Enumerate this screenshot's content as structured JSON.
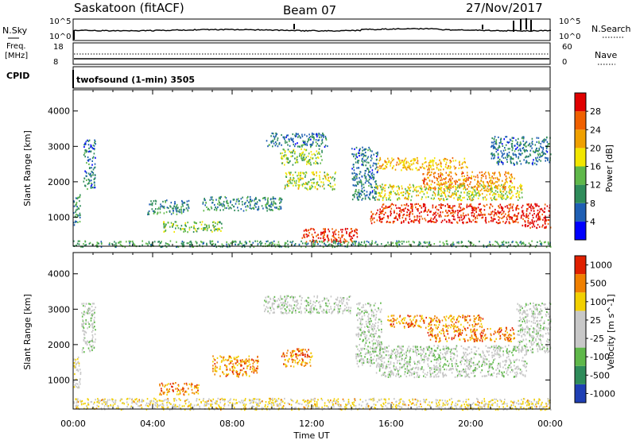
{
  "header": {
    "station": "Saskatoon (fitACF)",
    "beam": "Beam 07",
    "date": "27/Nov/2017"
  },
  "noise_panel": {
    "left_label": "N.Sky",
    "right_label": "N.Search",
    "left_ticks": [
      "10^5",
      "10^0"
    ],
    "right_ticks": [
      "10^5",
      "10^0"
    ]
  },
  "freq_panel": {
    "left_label_1": "Freq.",
    "left_label_2": "[MHz]",
    "right_label": "Nave",
    "left_ticks": [
      "18",
      "8"
    ],
    "right_ticks": [
      "60",
      "0"
    ],
    "cpid_label": "CPID"
  },
  "cpid": {
    "text": "twofsound (1-min) 3505"
  },
  "chart_data": [
    {
      "type": "heatmap",
      "quantity": "Power",
      "ylabel": "Slant Range [km]",
      "yticks": [
        "1000",
        "2000",
        "3000",
        "4000"
      ],
      "ylim": [
        180,
        4600
      ],
      "xlim": [
        0,
        24
      ],
      "colorbar": {
        "label": "Power [dB]",
        "ticks": [
          "4",
          "8",
          "12",
          "16",
          "20",
          "24",
          "28"
        ],
        "colors": [
          "#0000ff",
          "#1f5fb4",
          "#2f8c5a",
          "#5fb84a",
          "#f2e600",
          "#f0a000",
          "#f06000",
          "#e00000"
        ]
      },
      "regions": [
        {
          "t0": 0.0,
          "t1": 0.35,
          "r0": 800,
          "r1": 1700,
          "v": 0.3
        },
        {
          "t0": 0.5,
          "t1": 1.1,
          "r0": 1800,
          "r1": 3200,
          "v": 0.25
        },
        {
          "t0": 3.7,
          "t1": 5.8,
          "r0": 1100,
          "r1": 1500,
          "v": 0.3
        },
        {
          "t0": 4.5,
          "t1": 7.5,
          "r0": 600,
          "r1": 900,
          "v": 0.45
        },
        {
          "t0": 6.5,
          "t1": 10.5,
          "r0": 1200,
          "r1": 1600,
          "v": 0.3
        },
        {
          "t0": 9.7,
          "t1": 12.8,
          "r0": 3000,
          "r1": 3400,
          "v": 0.25
        },
        {
          "t0": 10.4,
          "t1": 12.5,
          "r0": 2500,
          "r1": 2950,
          "v": 0.45
        },
        {
          "t0": 10.6,
          "t1": 13.2,
          "r0": 1800,
          "r1": 2300,
          "v": 0.5
        },
        {
          "t0": 11.5,
          "t1": 14.3,
          "r0": 300,
          "r1": 700,
          "v": 0.9
        },
        {
          "t0": 0.0,
          "t1": 24.0,
          "r0": 180,
          "r1": 350,
          "v": 0.35
        },
        {
          "t0": 14.0,
          "t1": 15.3,
          "r0": 1500,
          "r1": 3000,
          "v": 0.25
        },
        {
          "t0": 14.9,
          "t1": 15.6,
          "r0": 850,
          "r1": 1250,
          "v": 0.9
        },
        {
          "t0": 15.3,
          "t1": 19.8,
          "r0": 2350,
          "r1": 2700,
          "v": 0.65
        },
        {
          "t0": 17.5,
          "t1": 22.2,
          "r0": 1800,
          "r1": 2300,
          "v": 0.75
        },
        {
          "t0": 15.2,
          "t1": 22.6,
          "r0": 1500,
          "r1": 1950,
          "v": 0.55
        },
        {
          "t0": 15.5,
          "t1": 22.4,
          "r0": 850,
          "r1": 1400,
          "v": 0.9
        },
        {
          "t0": 22.5,
          "t1": 24.0,
          "r0": 700,
          "r1": 1400,
          "v": 0.95
        },
        {
          "t0": 21.0,
          "t1": 24.0,
          "r0": 2500,
          "r1": 3300,
          "v": 0.25
        }
      ]
    },
    {
      "type": "heatmap",
      "quantity": "Velocity",
      "ylabel": "Slant Range [km]",
      "yticks": [
        "1000",
        "2000",
        "3000",
        "4000"
      ],
      "ylim": [
        180,
        4600
      ],
      "xlim": [
        0,
        24
      ],
      "colorbar": {
        "label": "Velocity [m s^-1]",
        "ticks": [
          "1000",
          "500",
          "100",
          "25",
          "-25",
          "-100",
          "-500",
          "-1000"
        ],
        "colors": [
          "#1f3fb4",
          "#2f8c5a",
          "#5fb84a",
          "#c8c8c8",
          "#c8c8c8",
          "#f2d000",
          "#f08000",
          "#e02000"
        ]
      },
      "regions": [
        {
          "t0": 0.0,
          "t1": 0.35,
          "r0": 800,
          "r1": 1700,
          "v": 0.6
        },
        {
          "t0": 0.4,
          "t1": 1.1,
          "r0": 1800,
          "r1": 3200,
          "v": 0.45
        },
        {
          "t0": 4.3,
          "t1": 6.3,
          "r0": 600,
          "r1": 950,
          "v": 0.8
        },
        {
          "t0": 7.0,
          "t1": 9.3,
          "r0": 1100,
          "r1": 1700,
          "v": 0.78
        },
        {
          "t0": 10.4,
          "t1": 12.0,
          "r0": 1400,
          "r1": 1900,
          "v": 0.82
        },
        {
          "t0": 9.5,
          "t1": 14.0,
          "r0": 2900,
          "r1": 3400,
          "v": 0.45
        },
        {
          "t0": 0.0,
          "t1": 24.0,
          "r0": 180,
          "r1": 500,
          "v": 0.62
        },
        {
          "t0": 14.2,
          "t1": 15.5,
          "r0": 1400,
          "r1": 3200,
          "v": 0.45
        },
        {
          "t0": 15.8,
          "t1": 20.6,
          "r0": 2500,
          "r1": 2850,
          "v": 0.8
        },
        {
          "t0": 17.8,
          "t1": 22.2,
          "r0": 2100,
          "r1": 2500,
          "v": 0.82
        },
        {
          "t0": 15.2,
          "t1": 22.8,
          "r0": 1100,
          "r1": 2000,
          "v": 0.45
        },
        {
          "t0": 22.3,
          "t1": 24.0,
          "r0": 1800,
          "r1": 3200,
          "v": 0.45
        }
      ]
    }
  ],
  "xaxis": {
    "ticks": [
      "00:00",
      "04:00",
      "08:00",
      "12:00",
      "16:00",
      "20:00",
      "00:00"
    ],
    "label": "Time UT"
  }
}
